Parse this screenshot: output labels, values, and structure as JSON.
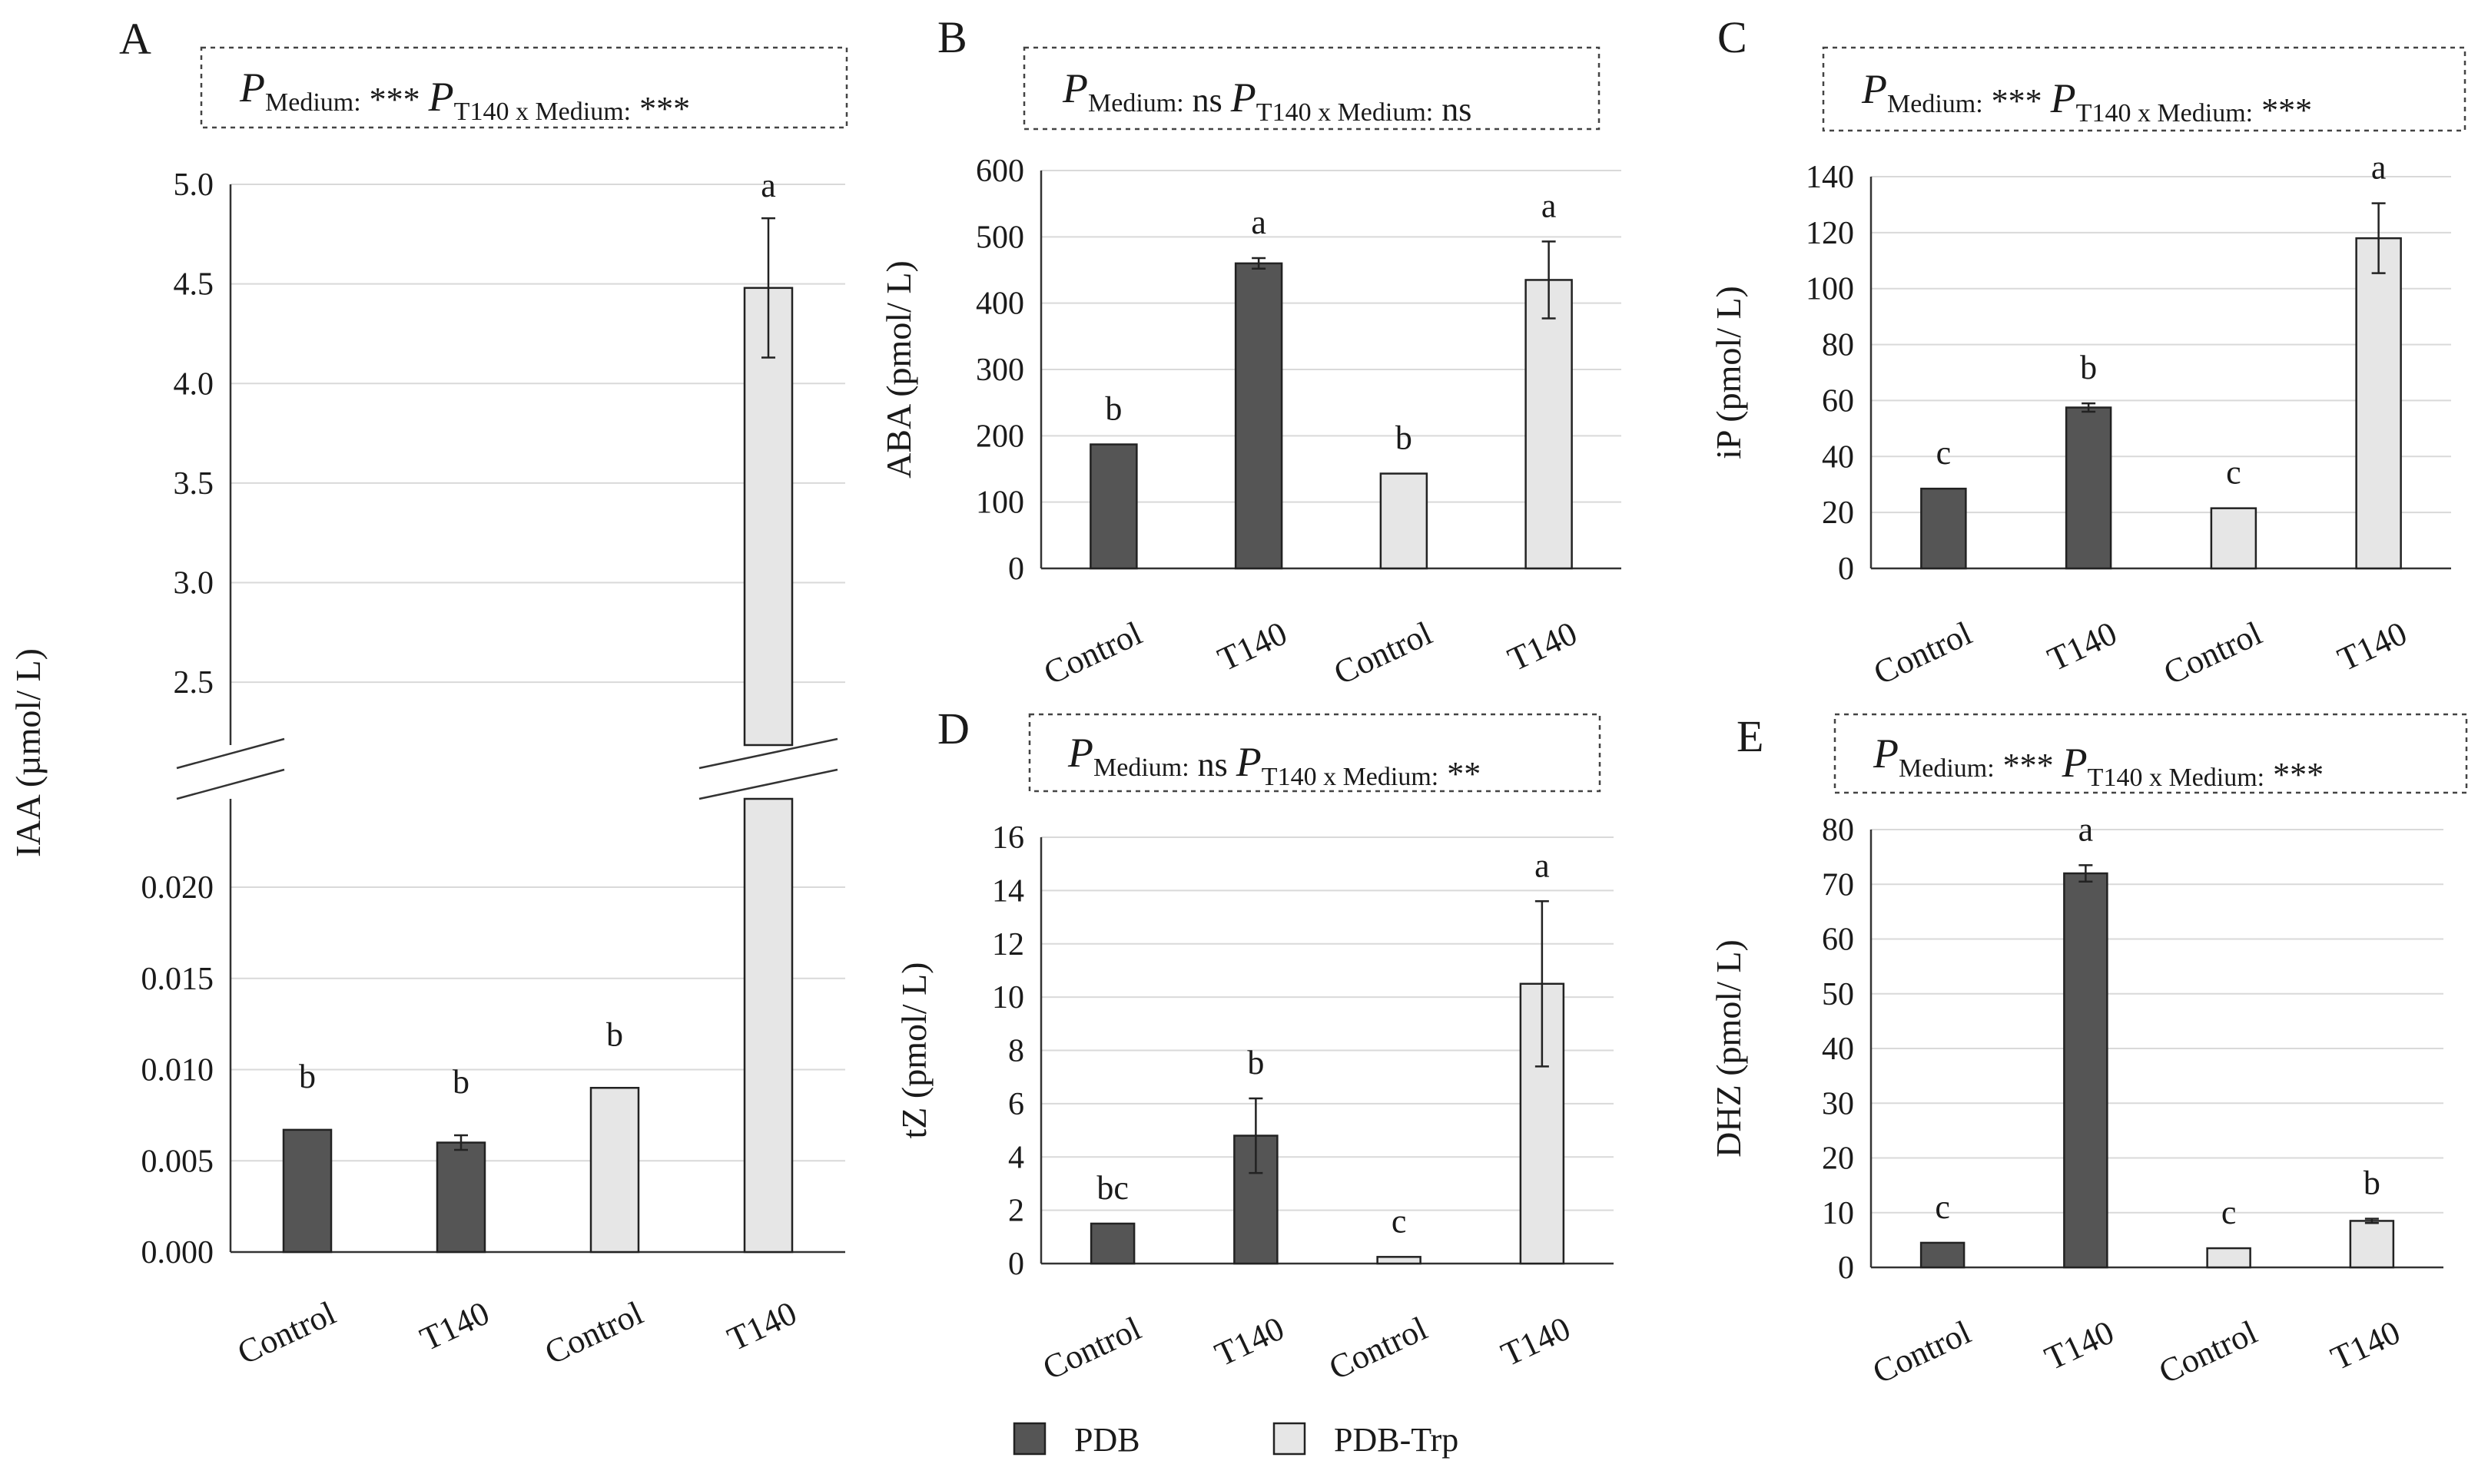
{
  "legend": [
    {
      "name": "PDB",
      "color": "#555555"
    },
    {
      "name": "PDB-Trp",
      "color": "#e6e6e6"
    }
  ],
  "chart_data": [
    {
      "id": "A",
      "type": "bar",
      "panel_label": "A",
      "stat": {
        "p": "P",
        "medium_sub": "Medium:",
        "medium_val": "***",
        "inter_sub": "T140 x Medium:",
        "inter_val": "***"
      },
      "ylabel": "IAA (µmol/ L)",
      "broken_axis": true,
      "upper_ylim": [
        2.3,
        5.0
      ],
      "upper_ticks": [
        "2.5",
        "3.0",
        "3.5",
        "4.0",
        "4.5",
        "5.0"
      ],
      "lower_ylim": [
        0,
        0.024
      ],
      "lower_ticks": [
        "0.000",
        "0.005",
        "0.010",
        "0.015",
        "0.020"
      ],
      "categories": [
        "Control",
        "T140",
        "Control",
        "T140"
      ],
      "series": [
        "PDB",
        "PDB",
        "PDB-Trp",
        "PDB-Trp"
      ],
      "values": [
        0.0067,
        0.006,
        0.009,
        4.48
      ],
      "errors": [
        0,
        0.0004,
        0,
        0.35
      ],
      "letters": [
        "b",
        "b",
        "b",
        "a"
      ]
    },
    {
      "id": "B",
      "type": "bar",
      "panel_label": "B",
      "stat": {
        "p": "P",
        "medium_sub": "Medium:",
        "medium_val": "ns",
        "inter_sub": "T140 x Medium:",
        "inter_val": "ns"
      },
      "ylabel": "ABA (pmol/ L)",
      "ylim": [
        0,
        600
      ],
      "ticks": [
        "0",
        "100",
        "200",
        "300",
        "400",
        "500",
        "600"
      ],
      "categories": [
        "Control",
        "T140",
        "Control",
        "T140"
      ],
      "series": [
        "PDB",
        "PDB",
        "PDB-Trp",
        "PDB-Trp"
      ],
      "values": [
        187,
        460,
        143,
        435
      ],
      "errors": [
        0,
        8,
        0,
        58
      ],
      "letters": [
        "b",
        "a",
        "b",
        "a"
      ]
    },
    {
      "id": "C",
      "type": "bar",
      "panel_label": "C",
      "stat": {
        "p": "P",
        "medium_sub": "Medium:",
        "medium_val": "***",
        "inter_sub": "T140 x Medium:",
        "inter_val": "***"
      },
      "ylabel": "iP (pmol/ L)",
      "ylim": [
        0,
        140
      ],
      "ticks": [
        "0",
        "20",
        "40",
        "60",
        "80",
        "100",
        "120",
        "140"
      ],
      "categories": [
        "Control",
        "T140",
        "Control",
        "T140"
      ],
      "series": [
        "PDB",
        "PDB",
        "PDB-Trp",
        "PDB-Trp"
      ],
      "values": [
        28.5,
        57.5,
        21.5,
        118
      ],
      "errors": [
        0,
        1.5,
        0,
        12.5
      ],
      "letters": [
        "c",
        "b",
        "c",
        "a"
      ]
    },
    {
      "id": "D",
      "type": "bar",
      "panel_label": "D",
      "stat": {
        "p": "P",
        "medium_sub": "Medium:",
        "medium_val": "ns",
        "inter_sub": "T140 x Medium:",
        "inter_val": "**"
      },
      "ylabel": "tZ (pmol/ L)",
      "ylim": [
        0,
        16
      ],
      "ticks": [
        "0",
        "2",
        "4",
        "6",
        "8",
        "10",
        "12",
        "14",
        "16"
      ],
      "categories": [
        "Control",
        "T140",
        "Control",
        "T140"
      ],
      "series": [
        "PDB",
        "PDB",
        "PDB-Trp",
        "PDB-Trp"
      ],
      "values": [
        1.5,
        4.8,
        0.25,
        10.5
      ],
      "errors": [
        0,
        1.4,
        0,
        3.1
      ],
      "letters": [
        "bc",
        "b",
        "c",
        "a"
      ]
    },
    {
      "id": "E",
      "type": "bar",
      "panel_label": "E",
      "stat": {
        "p": "P",
        "medium_sub": "Medium:",
        "medium_val": "***",
        "inter_sub": "T140 x Medium:",
        "inter_val": "***"
      },
      "ylabel": "DHZ (pmol/ L)",
      "ylim": [
        0,
        80
      ],
      "ticks": [
        "0",
        "10",
        "20",
        "30",
        "40",
        "50",
        "60",
        "70",
        "80"
      ],
      "categories": [
        "Control",
        "T140",
        "Control",
        "T140"
      ],
      "series": [
        "PDB",
        "PDB",
        "PDB-Trp",
        "PDB-Trp"
      ],
      "values": [
        4.5,
        72,
        3.5,
        8.5
      ],
      "errors": [
        0,
        1.5,
        0,
        0.4
      ],
      "letters": [
        "c",
        "a",
        "c",
        "b"
      ]
    }
  ]
}
